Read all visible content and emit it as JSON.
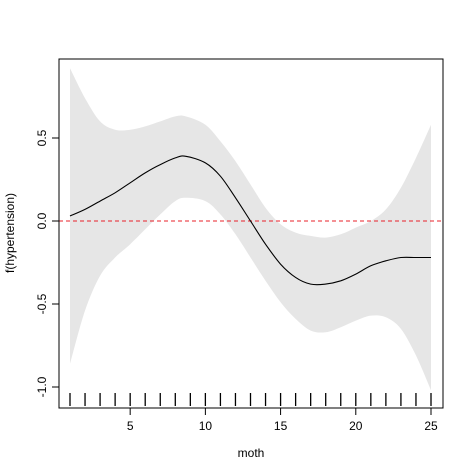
{
  "chart_data": {
    "type": "line",
    "title": "",
    "xlabel": "moth",
    "ylabel": "f(hypertension)",
    "xlim": [
      1,
      25
    ],
    "ylim": [
      -1.0,
      0.9
    ],
    "x_ticks": [
      5,
      10,
      15,
      20,
      25
    ],
    "x_tick_labels": [
      "5",
      "10",
      "15",
      "20",
      "25"
    ],
    "y_ticks": [
      -1.0,
      -0.5,
      0.0,
      0.5
    ],
    "y_tick_labels": [
      "-1.0",
      "-0.5",
      "0.0",
      "0.5"
    ],
    "grid": false,
    "legend": "none",
    "reference_line": {
      "y": 0.0,
      "color": "#e8202a",
      "style": "dashed"
    },
    "band_color": "#e6e6e6",
    "line_color": "#000000",
    "rug": [
      1,
      2,
      3,
      4,
      5,
      6,
      7,
      8,
      9,
      10,
      11,
      12,
      13,
      14,
      15,
      16,
      17,
      18,
      19,
      20,
      21,
      22,
      23,
      24,
      25
    ],
    "series": [
      {
        "x": [
          1,
          2,
          3,
          4,
          5,
          6,
          7,
          8,
          8.7,
          10,
          11,
          12,
          13,
          14,
          15,
          16,
          17,
          18,
          19,
          20,
          21,
          22,
          23,
          24,
          25
        ],
        "y": [
          0.03,
          0.07,
          0.12,
          0.17,
          0.23,
          0.29,
          0.34,
          0.38,
          0.39,
          0.35,
          0.27,
          0.14,
          0.0,
          -0.14,
          -0.26,
          -0.34,
          -0.38,
          -0.38,
          -0.36,
          -0.32,
          -0.27,
          -0.24,
          -0.22,
          -0.22,
          -0.22
        ],
        "upper": [
          0.92,
          0.74,
          0.6,
          0.55,
          0.55,
          0.57,
          0.6,
          0.63,
          0.63,
          0.58,
          0.48,
          0.36,
          0.22,
          0.08,
          -0.02,
          -0.07,
          -0.09,
          -0.1,
          -0.08,
          -0.04,
          0.0,
          0.07,
          0.2,
          0.38,
          0.58
        ],
        "lower": [
          -0.86,
          -0.54,
          -0.33,
          -0.22,
          -0.14,
          -0.05,
          0.04,
          0.12,
          0.14,
          0.12,
          0.04,
          -0.08,
          -0.22,
          -0.36,
          -0.49,
          -0.59,
          -0.66,
          -0.67,
          -0.64,
          -0.6,
          -0.57,
          -0.58,
          -0.65,
          -0.81,
          -1.02
        ]
      }
    ]
  }
}
